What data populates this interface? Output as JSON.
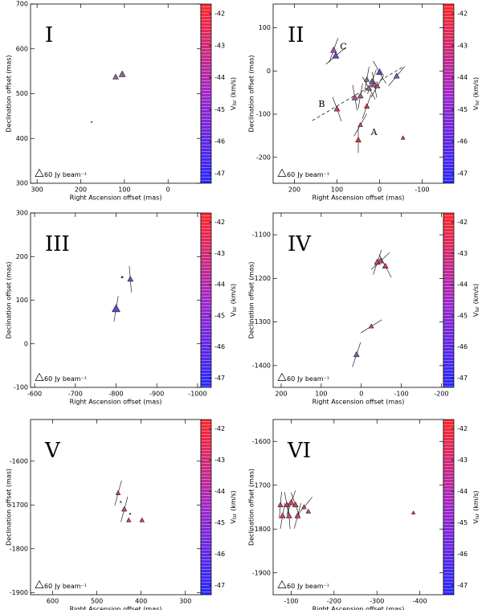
{
  "chart_data": [
    {
      "type": "scatter",
      "title": "I",
      "xlabel": "Right Ascension offset (mas)",
      "ylabel": "Declination offset (mas)",
      "colorbar_label": {
        "main": "V",
        "sub": "lsr",
        "unit": "(km/s)"
      },
      "beam_flux": 60,
      "beam_unit": "Jy beam⁻¹",
      "xlim": [
        315,
        -75
      ],
      "ylim": [
        300,
        700
      ],
      "xticks": [
        300,
        200,
        100,
        0
      ],
      "yticks": [
        300,
        400,
        500,
        600,
        700
      ],
      "clim": [
        -47.3,
        -41.7
      ],
      "cticks": [
        -42,
        -43,
        -44,
        -45,
        -46,
        -47
      ],
      "series": [
        {
          "x": [
            105,
            120,
            175
          ],
          "values": [
            543,
            537,
            437
          ],
          "sizes": [
            40,
            30,
            2
          ],
          "vlsr": [
            -44.6,
            -44.4,
            -44.8
          ],
          "angles": [
            null,
            null,
            null
          ]
        }
      ]
    },
    {
      "type": "scatter",
      "title": "II",
      "xlabel": "Right Ascension offset (mas)",
      "ylabel": "Declination offset (mas)",
      "colorbar_label": {
        "main": "V",
        "sub": "lsr",
        "unit": "(km/s)"
      },
      "beam_flux": 60,
      "beam_unit": "Jy beam⁻¹",
      "xlim": [
        250,
        -150
      ],
      "ylim": [
        -260,
        155
      ],
      "xticks": [
        200,
        100,
        0,
        -100
      ],
      "yticks": [
        -200,
        -100,
        0,
        100
      ],
      "clim": [
        -47.3,
        -41.7
      ],
      "cticks": [
        -42,
        -43,
        -44,
        -45,
        -46,
        -47
      ],
      "annotations": [
        {
          "text": "A",
          "x": 13,
          "y": -143
        },
        {
          "text": "B",
          "x": 136,
          "y": -78
        },
        {
          "text": "C",
          "x": 85,
          "y": 55
        }
      ],
      "fit_line": {
        "x": [
          158,
          -58
        ],
        "y": [
          -115,
          11
        ]
      },
      "series": [
        {
          "x": [
            108,
            103,
            100,
            58,
            45,
            25,
            18,
            12,
            5,
            0,
            -40,
            30,
            45,
            50,
            -55,
            30
          ],
          "values": [
            48,
            35,
            -88,
            -62,
            -58,
            -40,
            -25,
            -32,
            -35,
            -3,
            -12,
            -82,
            -125,
            -160,
            -155,
            -20
          ],
          "sizes": [
            35,
            40,
            30,
            35,
            30,
            30,
            30,
            35,
            25,
            40,
            30,
            25,
            20,
            30,
            15,
            25
          ],
          "vlsr": [
            -44.8,
            -45.6,
            -42.8,
            -43.8,
            -44.2,
            -44.6,
            -45.3,
            -44.0,
            -43.5,
            -45.8,
            -45.0,
            -42.5,
            -42.8,
            -42.5,
            -42.7,
            -44.5
          ],
          "angles": [
            160,
            130,
            20,
            10,
            170,
            30,
            160,
            10,
            150,
            30,
            140,
            160,
            150,
            0,
            null,
            170
          ]
        }
      ]
    },
    {
      "type": "scatter",
      "title": "III",
      "xlabel": "Right Ascension offset (mas)",
      "ylabel": "Declination offset (mas)",
      "colorbar_label": {
        "main": "V",
        "sub": "lsr",
        "unit": "(km/s)"
      },
      "beam_flux": 60,
      "beam_unit": "Jy beam⁻¹",
      "xlim": [
        -590,
        -1008
      ],
      "ylim": [
        -100,
        300
      ],
      "xticks": [
        -600,
        -700,
        -800,
        -900,
        -1000
      ],
      "yticks": [
        -100,
        0,
        100,
        200,
        300
      ],
      "clim": [
        -47.3,
        -41.7
      ],
      "cticks": [
        -42,
        -43,
        -44,
        -45,
        -46,
        -47
      ],
      "series": [
        {
          "x": [
            -800,
            -835,
            -815
          ],
          "values": [
            80,
            148,
            153
          ],
          "sizes": [
            60,
            30,
            5
          ],
          "vlsr": [
            -45.8,
            -45.5,
            -45.9
          ],
          "angles": [
            170,
            5,
            null
          ]
        }
      ]
    },
    {
      "type": "scatter",
      "title": "IV",
      "xlabel": "Right Ascension offset (mas)",
      "ylabel": "Declination offset (mas)",
      "colorbar_label": {
        "main": "V",
        "sub": "lsr",
        "unit": "(km/s)"
      },
      "beam_flux": 60,
      "beam_unit": "Jy beam⁻¹",
      "xlim": [
        220,
        -205
      ],
      "ylim": [
        -1450,
        -1050
      ],
      "xticks": [
        200,
        100,
        0,
        -100,
        -200
      ],
      "yticks": [
        -1400,
        -1300,
        -1200,
        -1100
      ],
      "clim": [
        -47.3,
        -41.7
      ],
      "cticks": [
        -42,
        -43,
        -44,
        -45,
        -46,
        -47
      ],
      "series": [
        {
          "x": [
            -40,
            -48,
            -60,
            -25,
            12
          ],
          "values": [
            -1163,
            -1160,
            -1172,
            -1310,
            -1375
          ],
          "sizes": [
            35,
            30,
            30,
            20,
            30
          ],
          "vlsr": [
            -43.5,
            -43.0,
            -43.2,
            -43.3,
            -44.8
          ],
          "angles": [
            160,
            130,
            30,
            120,
            160
          ]
        }
      ]
    },
    {
      "type": "scatter",
      "title": "V",
      "xlabel": "Right Ascension offset (mas)",
      "ylabel": "Declination offset (mas)",
      "colorbar_label": {
        "main": "V",
        "sub": "lsr",
        "unit": "(km/s)"
      },
      "beam_flux": 60,
      "beam_unit": "Jy beam⁻¹",
      "xlim": [
        650,
        265
      ],
      "ylim": [
        -1905,
        -1505
      ],
      "xticks": [
        600,
        500,
        400,
        300
      ],
      "yticks": [
        -1900,
        -1800,
        -1700,
        -1600
      ],
      "clim": [
        -47.3,
        -41.7
      ],
      "cticks": [
        -42,
        -43,
        -44,
        -45,
        -46,
        -47
      ],
      "series": [
        {
          "x": [
            452,
            438,
            428,
            446,
            398,
            425
          ],
          "values": [
            -1673,
            -1710,
            -1735,
            -1693,
            -1735,
            -1720
          ],
          "sizes": [
            20,
            25,
            20,
            3,
            20,
            3
          ],
          "vlsr": [
            -43.0,
            -43.3,
            -42.9,
            -43.5,
            -43.0,
            -43.0
          ],
          "angles": [
            165,
            165,
            null,
            null,
            null,
            null
          ]
        }
      ]
    },
    {
      "type": "scatter",
      "title": "VI",
      "xlabel": "Right Ascension offset (mas)",
      "ylabel": "Declination offset (mas)",
      "colorbar_label": {
        "main": "V",
        "sub": "lsr",
        "unit": "(km/s)"
      },
      "beam_flux": 60,
      "beam_unit": "Jy beam⁻¹",
      "xlim": [
        -58,
        -455
      ],
      "ylim": [
        -1950,
        -1550
      ],
      "xticks": [
        -100,
        -200,
        -300,
        -400
      ],
      "yticks": [
        -1900,
        -1800,
        -1700,
        -1600
      ],
      "clim": [
        -47.3,
        -41.7
      ],
      "cticks": [
        -42,
        -43,
        -44,
        -45,
        -46,
        -47
      ],
      "series": [
        {
          "x": [
            -75,
            -90,
            -100,
            -110,
            -130,
            -80,
            -95,
            -115,
            -140,
            -385
          ],
          "values": [
            -1745,
            -1745,
            -1740,
            -1745,
            -1750,
            -1770,
            -1770,
            -1770,
            -1760,
            -1763
          ],
          "sizes": [
            25,
            25,
            35,
            30,
            20,
            30,
            30,
            30,
            20,
            12
          ],
          "vlsr": [
            -43.2,
            -43.0,
            -42.8,
            -43.5,
            -43.1,
            -42.9,
            -43.3,
            -43.0,
            -43.4,
            -42.8
          ],
          "angles": [
            175,
            10,
            160,
            20,
            140,
            170,
            5,
            165,
            null,
            null
          ]
        }
      ]
    }
  ]
}
